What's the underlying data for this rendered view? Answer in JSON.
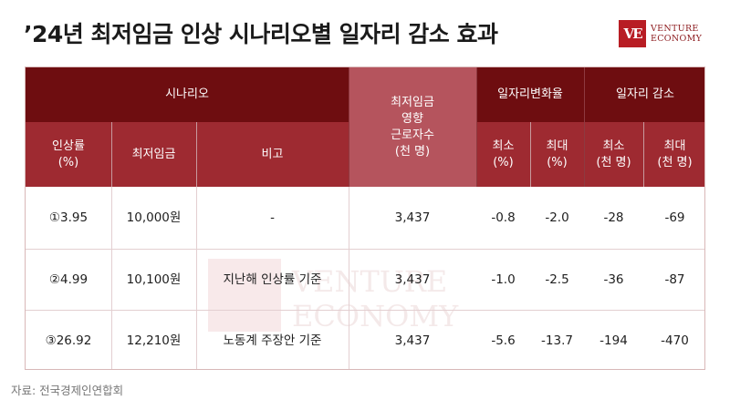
{
  "title": "’24년 최저임금 인상 시나리오별 일자리 감소 효과",
  "logo": {
    "mark": "VE",
    "line1": "VENTURE",
    "line2": "ECONOMY"
  },
  "header": {
    "scenario": "시나리오",
    "affected_workers": "최저임금\n영향\n근로자수\n(천 명)",
    "job_change_rate": "일자리변화율",
    "job_loss": "일자리 감소",
    "raise_rate": "인상률\n(%)",
    "min_wage": "최저임금",
    "note": "비고",
    "rate_min": "최소\n(%)",
    "rate_max": "최대\n(%)",
    "loss_min": "최소\n(천 명)",
    "loss_max": "최대\n(천 명)"
  },
  "rows": [
    {
      "raise": "①3.95",
      "wage": "10,000원",
      "note": "-",
      "workers": "3,437",
      "rate_min": "-0.8",
      "rate_max": "-2.0",
      "loss_min": "-28",
      "loss_max": "-69"
    },
    {
      "raise": "②4.99",
      "wage": "10,100원",
      "note": "지난해 인상률 기준",
      "workers": "3,437",
      "rate_min": "-1.0",
      "rate_max": "-2.5",
      "loss_min": "-36",
      "loss_max": "-87"
    },
    {
      "raise": "③26.92",
      "wage": "12,210원",
      "note": "노동계 주장안 기준",
      "workers": "3,437",
      "rate_min": "-5.6",
      "rate_max": "-13.7",
      "loss_min": "-194",
      "loss_max": "-470"
    }
  ],
  "source": "자료: 전국경제인연합회"
}
